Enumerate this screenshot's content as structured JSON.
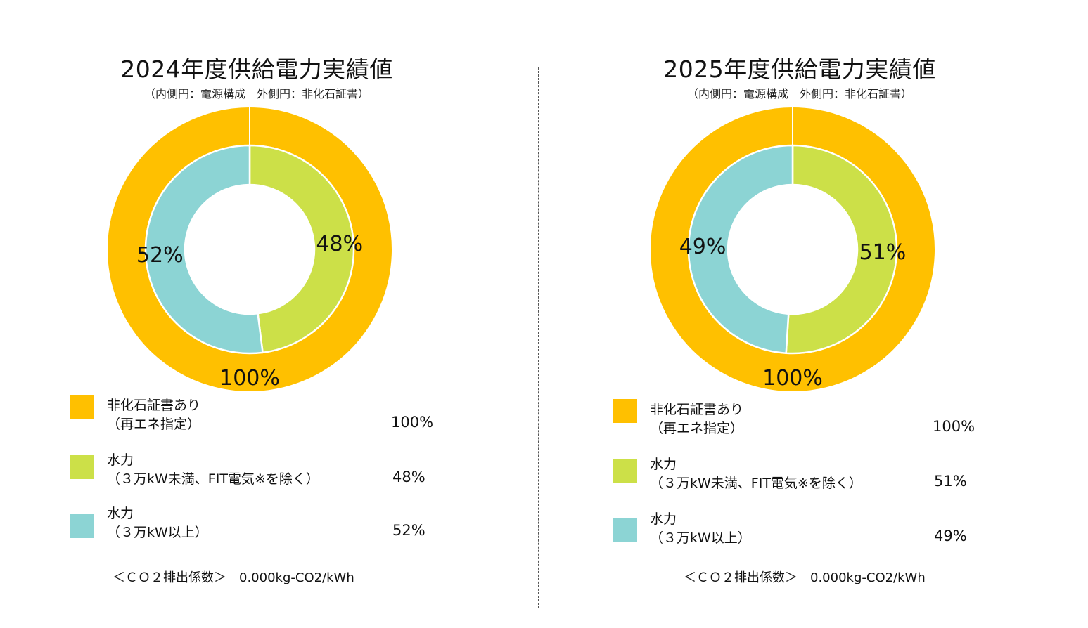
{
  "colors": {
    "outer": "#FFC000",
    "hydro_small": "#CCE048",
    "hydro_large": "#8CD4D4",
    "ring_stroke": "#ffffff"
  },
  "charts": [
    {
      "title": "2024年度供給電力実績値",
      "subtitle": "（内側円：電源構成　外側円：非化石証書）",
      "legend": [
        {
          "line1": "非化石証書あり",
          "line2": "（再エネ指定）",
          "value": "100%"
        },
        {
          "line1": "水力",
          "line2": "（３万kW未満、FIT電気※を除く）",
          "value": "48%"
        },
        {
          "line1": "水力",
          "line2": "（３万kW以上）",
          "value": "52%"
        }
      ],
      "co2_label": "＜ＣＯ２排出係数＞　0.000kg-CO2/kWh"
    },
    {
      "title": "2025年度供給電力実績値",
      "subtitle": "（内側円：電源構成　外側円：非化石証書）",
      "legend": [
        {
          "line1": "非化石証書あり",
          "line2": "（再エネ指定）",
          "value": "100%"
        },
        {
          "line1": "水力",
          "line2": "（３万kW未満、FIT電気※を除く）",
          "value": "51%"
        },
        {
          "line1": "水力",
          "line2": "（３万kW以上）",
          "value": "49%"
        }
      ],
      "co2_label": "＜ＣＯ２排出係数＞　0.000kg-CO2/kWh"
    }
  ],
  "chart_data": [
    {
      "type": "pie",
      "title": "2024年度供給電力実績値",
      "subtitle": "（内側円：電源構成　外側円：非化石証書）",
      "outer_ring": {
        "categories": [
          "非化石証書あり（再エネ指定）"
        ],
        "values": [
          100
        ],
        "labels": [
          "100%"
        ]
      },
      "inner_ring": {
        "categories": [
          "水力（３万kW未満、FIT電気※を除く）",
          "水力（３万kW以上）"
        ],
        "values": [
          48,
          52
        ],
        "labels": [
          "48%",
          "52%"
        ]
      }
    },
    {
      "type": "pie",
      "title": "2025年度供給電力実績値",
      "subtitle": "（内側円：電源構成　外側円：非化石証書）",
      "outer_ring": {
        "categories": [
          "非化石証書あり（再エネ指定）"
        ],
        "values": [
          100
        ],
        "labels": [
          "100%"
        ]
      },
      "inner_ring": {
        "categories": [
          "水力（３万kW未満、FIT電気※を除く）",
          "水力（３万kW以上）"
        ],
        "values": [
          51,
          49
        ],
        "labels": [
          "51%",
          "49%"
        ]
      }
    }
  ]
}
